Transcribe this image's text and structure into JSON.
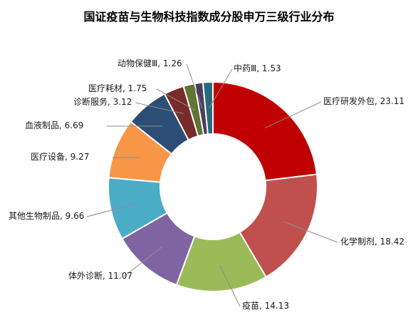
{
  "chart_data": {
    "type": "pie",
    "title": "国证疫苗与生物科技指数成分股申万三级行业分布",
    "series": [
      {
        "name": "医疗研发外包",
        "value": 23.11,
        "label": "医疗研发外包, 23.11",
        "color": "#C00000"
      },
      {
        "name": "化学制剂",
        "value": 18.42,
        "label": "化学制剂, 18.42",
        "color": "#C0504D"
      },
      {
        "name": "疫苗",
        "value": 14.13,
        "label": "疫苗, 14.13",
        "color": "#9BBB59"
      },
      {
        "name": "体外诊断",
        "value": 11.07,
        "label": "体外诊断, 11.07",
        "color": "#8064A2"
      },
      {
        "name": "其他生物制品",
        "value": 9.66,
        "label": "其他生物制品, 9.66",
        "color": "#4BACC6"
      },
      {
        "name": "医疗设备",
        "value": 9.27,
        "label": "医疗设备, 9.27",
        "color": "#F79646"
      },
      {
        "name": "血液制品",
        "value": 6.69,
        "label": "血液制品, 6.69",
        "color": "#2C4D75"
      },
      {
        "name": "诊断服务",
        "value": 3.12,
        "label": "诊断服务, 3.12",
        "color": "#772C2A"
      },
      {
        "name": "医疗耗材",
        "value": 1.75,
        "label": "医疗耗材, 1.75",
        "color": "#5F7530"
      },
      {
        "name": "动物保健Ⅲ",
        "value": 1.26,
        "label": "动物保健Ⅲ, 1.26",
        "color": "#4D3B62"
      },
      {
        "name": "中药Ⅲ",
        "value": 1.53,
        "label": "中药Ⅲ, 1.53",
        "color": "#276A7C"
      }
    ]
  }
}
